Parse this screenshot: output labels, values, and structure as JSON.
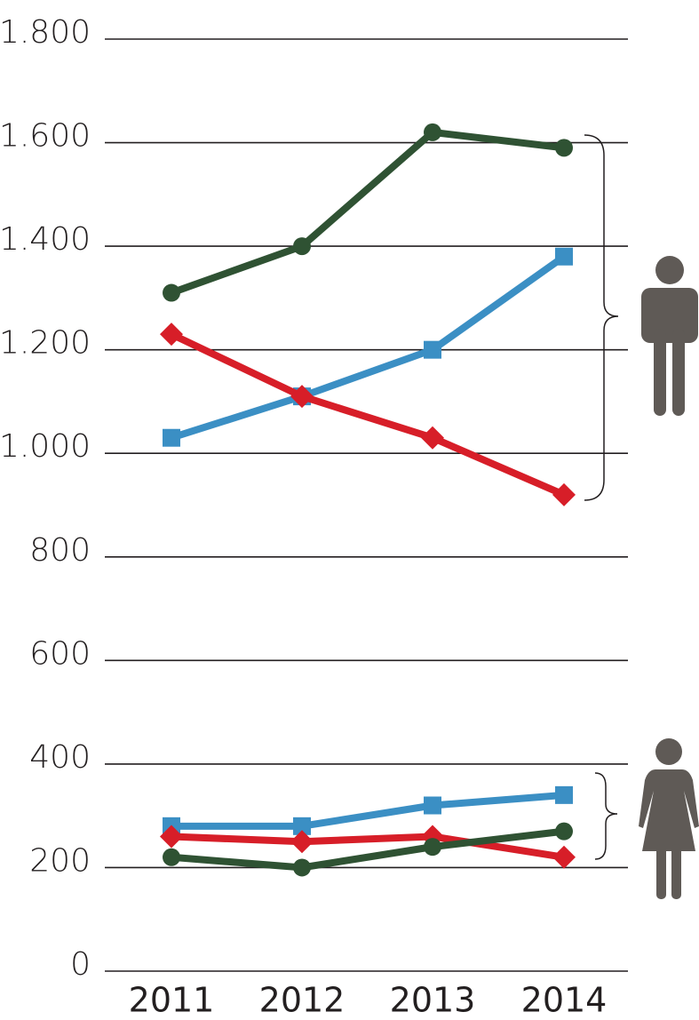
{
  "chart_data": {
    "type": "line",
    "categories": [
      "2011",
      "2012",
      "2013",
      "2014"
    ],
    "ylim": [
      0,
      1800
    ],
    "yticks": [
      0,
      200,
      400,
      600,
      800,
      {
        "value": 1000,
        "label": "1.000"
      },
      {
        "value": 1200,
        "label": "1.200"
      },
      {
        "value": 1400,
        "label": "1.400"
      },
      {
        "value": 1600,
        "label": "1.600"
      },
      {
        "value": 1800,
        "label": "1.800"
      }
    ],
    "grid": true,
    "series": [
      {
        "color": "#2f5233",
        "marker": "circle",
        "values": [
          1310,
          1400,
          1620,
          1590
        ]
      },
      {
        "color": "#3b8fc4",
        "marker": "square",
        "values": [
          1030,
          1110,
          1200,
          1380
        ]
      },
      {
        "color": "#d71e28",
        "marker": "diamond",
        "values": [
          1230,
          1110,
          1030,
          920
        ]
      },
      {
        "color": "#3b8fc4",
        "marker": "square",
        "values": [
          280,
          280,
          320,
          340
        ]
      },
      {
        "color": "#d71e28",
        "marker": "diamond",
        "values": [
          260,
          250,
          260,
          220
        ]
      },
      {
        "color": "#2f5233",
        "marker": "circle",
        "values": [
          220,
          200,
          240,
          270
        ]
      }
    ]
  }
}
